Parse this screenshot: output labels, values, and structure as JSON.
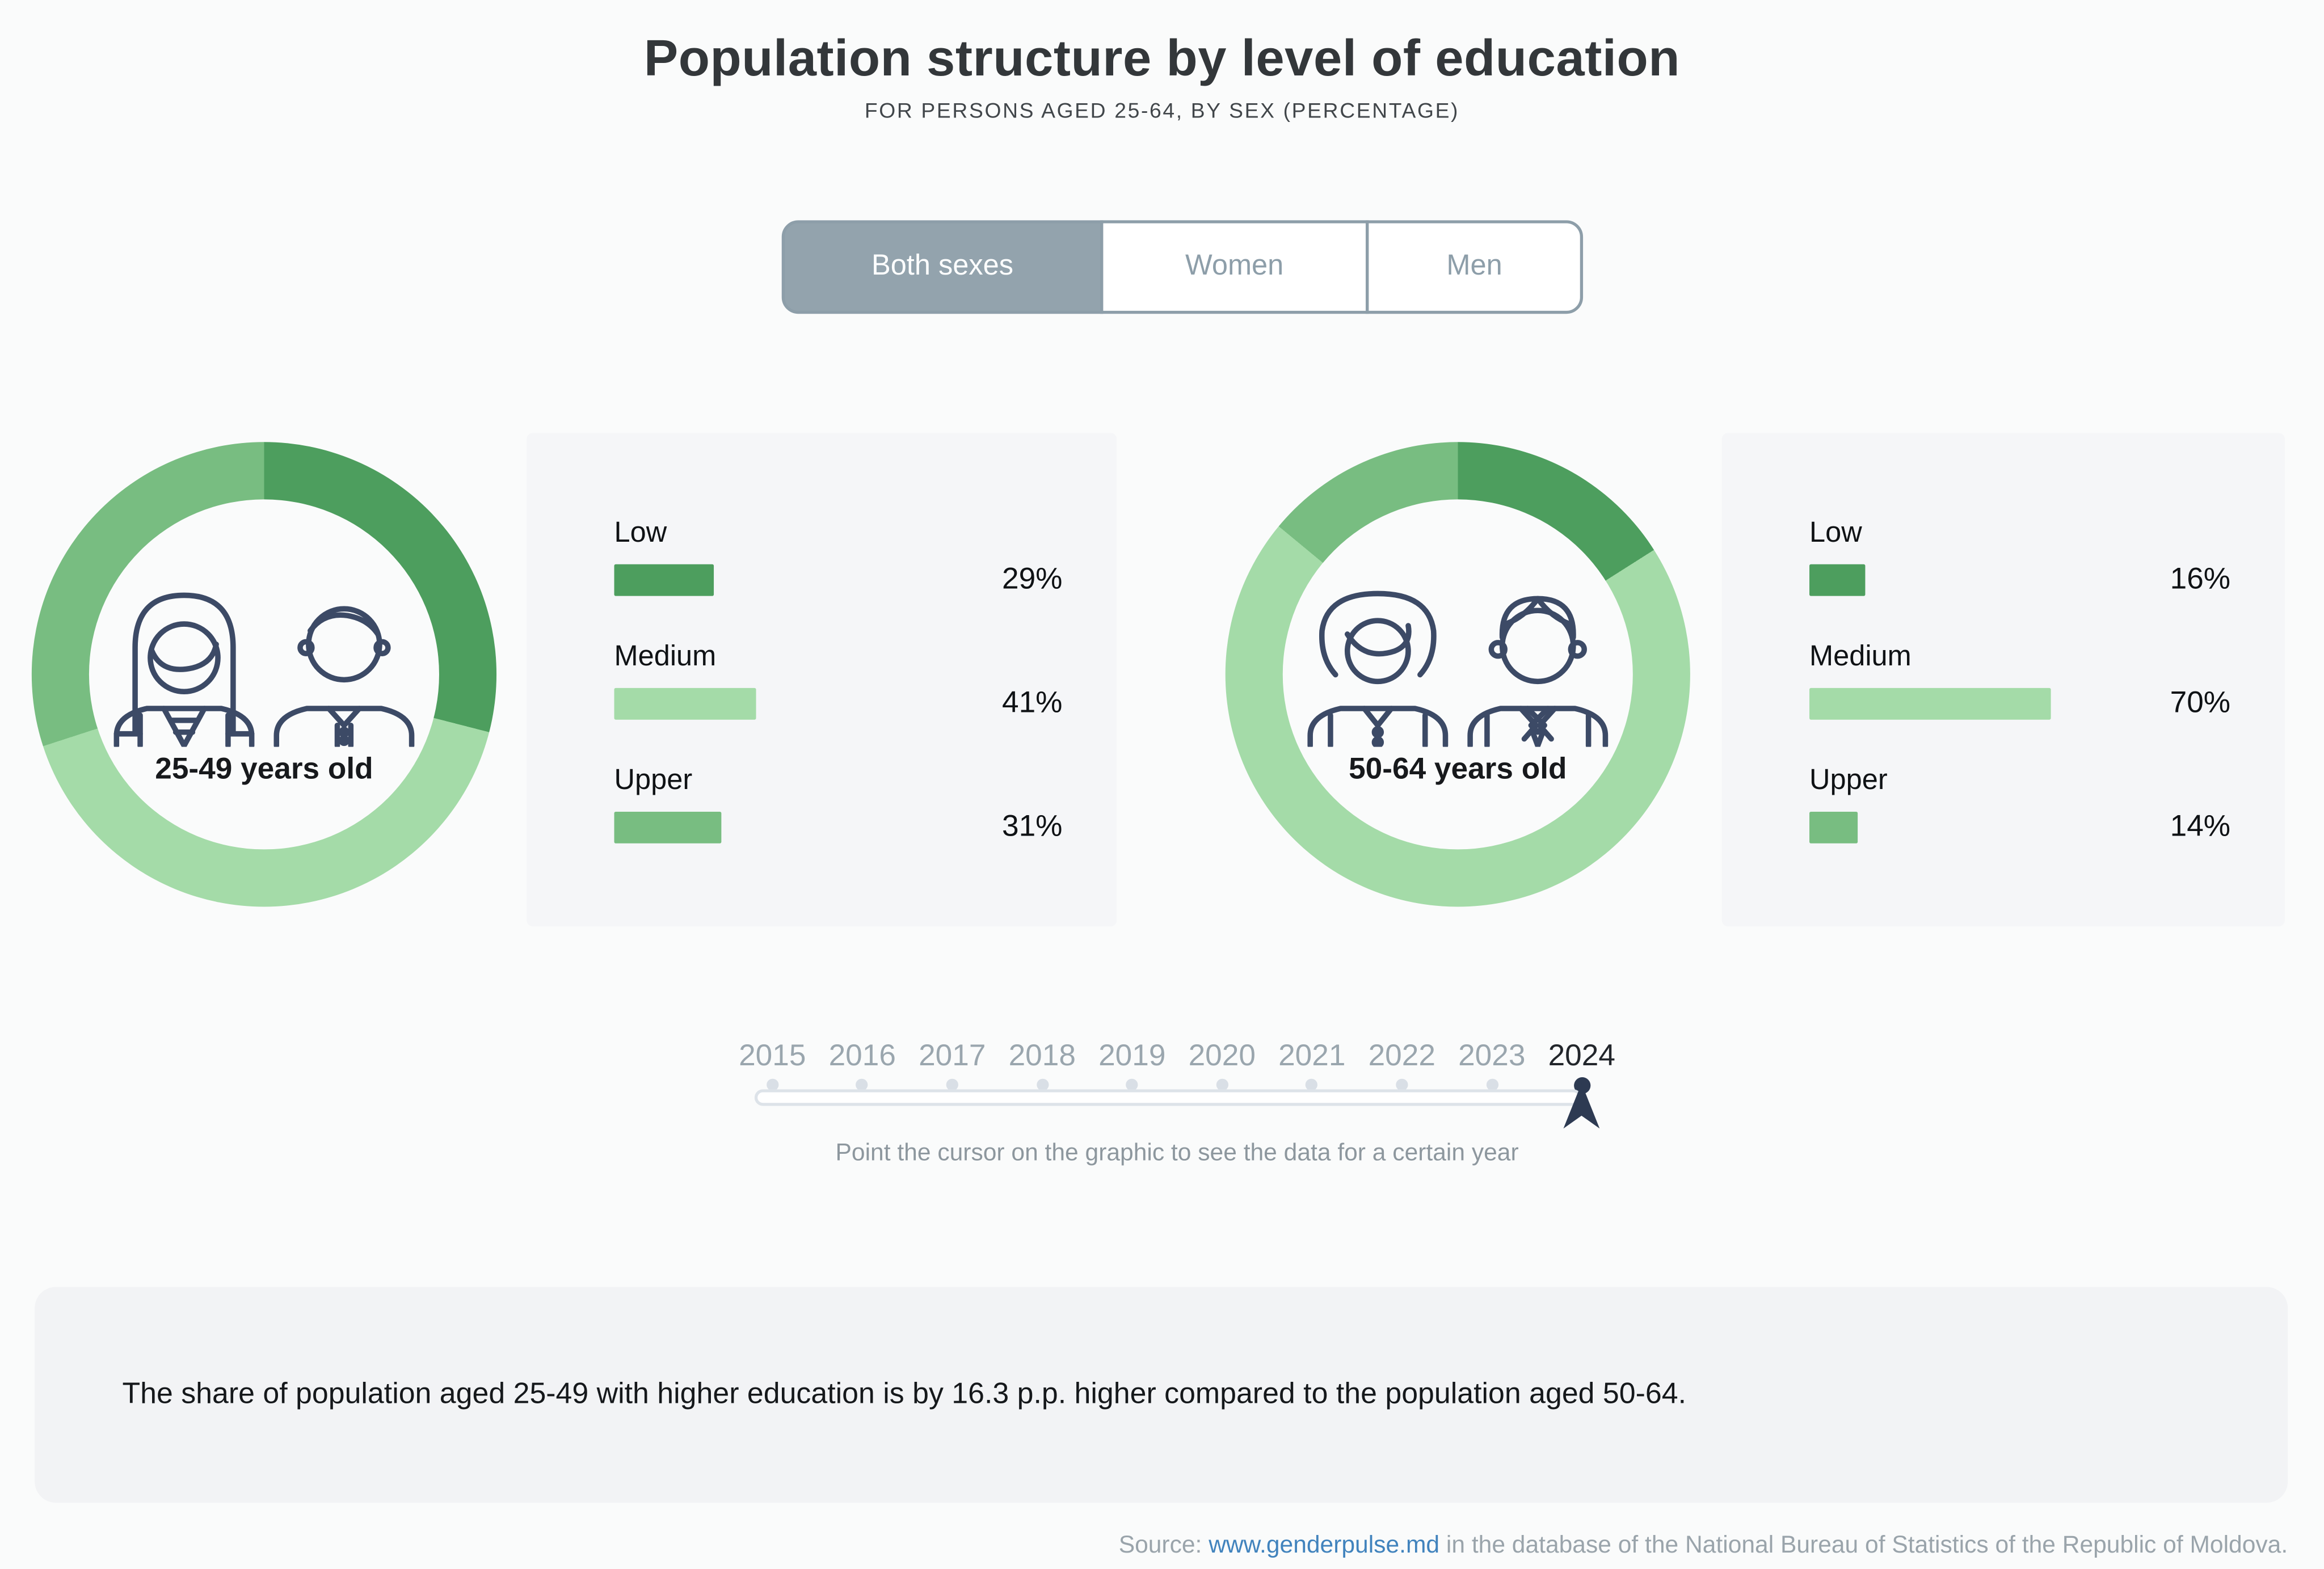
{
  "header": {
    "title": "Population structure by level of education",
    "subtitle": "FOR PERSONS AGED 25-64, BY SEX (PERCENTAGE)"
  },
  "toggle": {
    "options": [
      {
        "label": "Both sexes",
        "active": true
      },
      {
        "label": "Women",
        "active": false
      },
      {
        "label": "Men",
        "active": false
      }
    ]
  },
  "chart_data": {
    "type": "pie",
    "variant": "donut",
    "unit": "percent",
    "title": "Population structure by level of education",
    "subtitle": "For persons aged 25-64, by sex (percentage)",
    "categories": [
      "Low",
      "Medium",
      "Upper"
    ],
    "colors": {
      "Low": "#4d9e5e",
      "Medium": "#a4dba8",
      "Upper": "#78bd81"
    },
    "groups": [
      {
        "label": "25-49 years old",
        "segments": [
          {
            "name": "Low",
            "value": 29,
            "display": "29%"
          },
          {
            "name": "Medium",
            "value": 41,
            "display": "41%"
          },
          {
            "name": "Upper",
            "value": 31,
            "display": "31%"
          }
        ]
      },
      {
        "label": "50-64 years old",
        "segments": [
          {
            "name": "Low",
            "value": 16,
            "display": "16%"
          },
          {
            "name": "Medium",
            "value": 70,
            "display": "70%"
          },
          {
            "name": "Upper",
            "value": 14,
            "display": "14%"
          }
        ]
      }
    ],
    "years": [
      "2015",
      "2016",
      "2017",
      "2018",
      "2019",
      "2020",
      "2021",
      "2022",
      "2023",
      "2024"
    ],
    "selected_year": "2024"
  },
  "slider": {
    "instruction": "Point the cursor on the graphic to see the data for a certain year"
  },
  "note": {
    "text": "The share of population aged 25-49 with higher education is by 16.3 p.p. higher compared to the population aged 50-64."
  },
  "source": {
    "prefix": "Source: ",
    "link": "www.genderpulse.md",
    "suffix": " in the database of the National Bureau of Statistics of the Republic of Moldova."
  }
}
